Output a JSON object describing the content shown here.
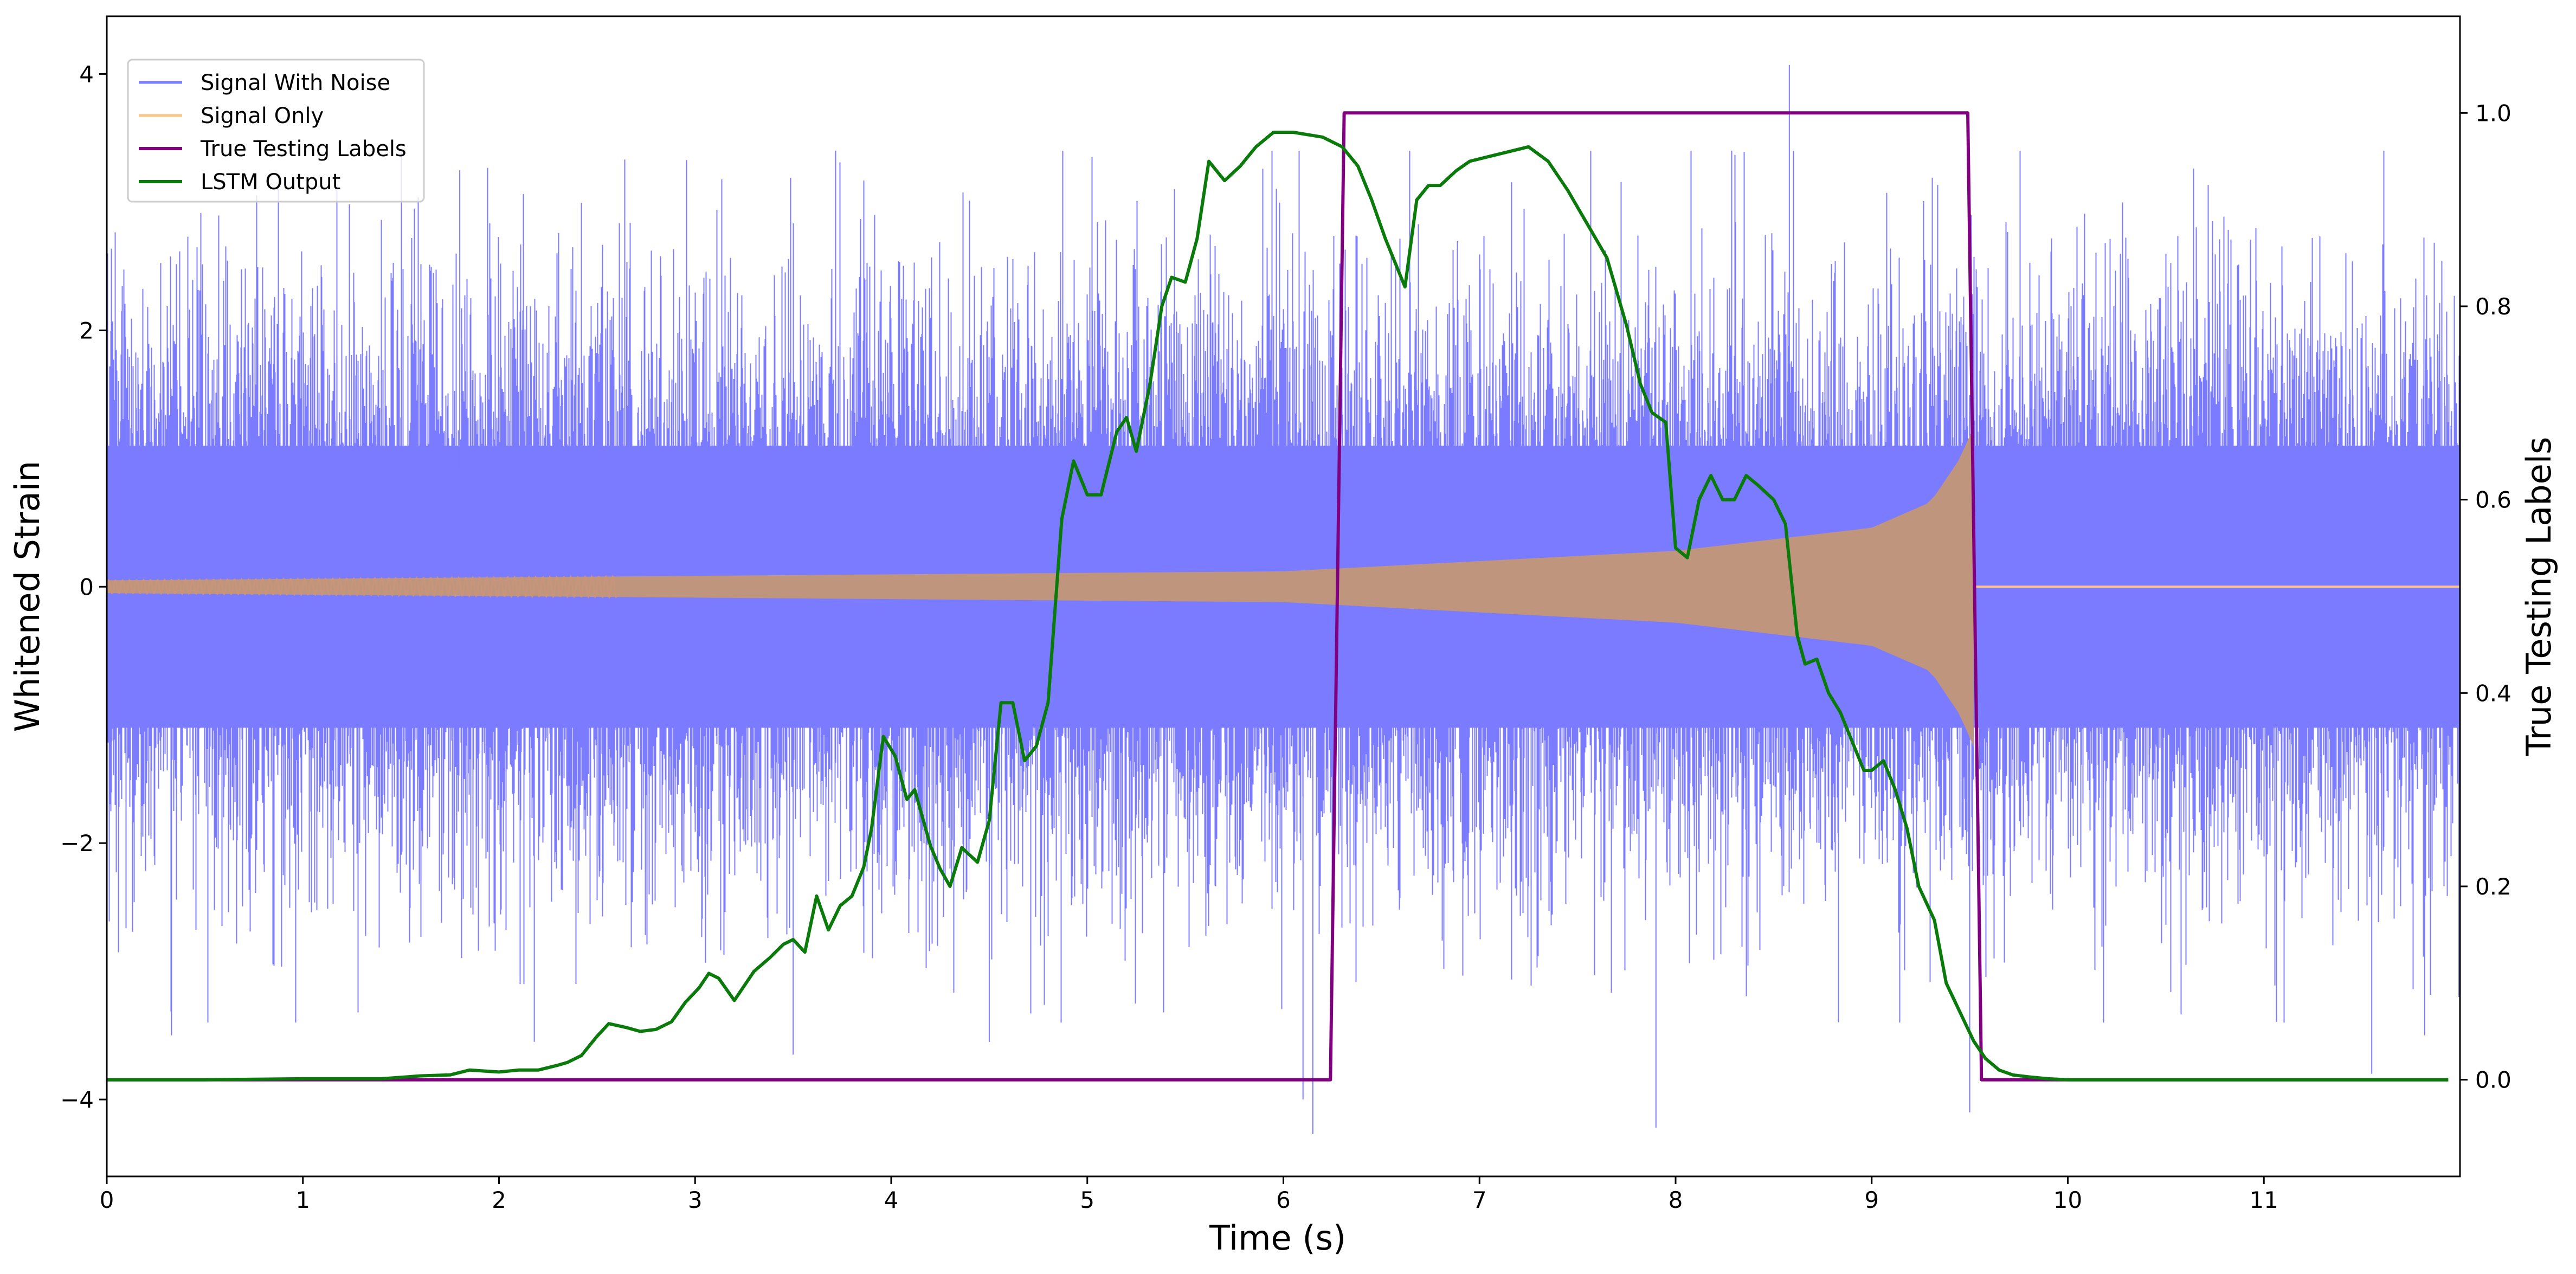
{
  "chart_data": {
    "type": "line",
    "title": "",
    "xlabel": "Time (s)",
    "ylabel": "Whitened Strain",
    "y2label": "True Testing Labels",
    "xlim": [
      0,
      12
    ],
    "ylim": [
      -4.6,
      4.45
    ],
    "y2lim": [
      -0.1,
      1.1
    ],
    "x_ticks": [
      0,
      1,
      2,
      3,
      4,
      5,
      6,
      7,
      8,
      9,
      10,
      11
    ],
    "y_ticks": [
      -4,
      -2,
      0,
      2,
      4
    ],
    "y_tick_labels": [
      "−4",
      "−2",
      "0",
      "2",
      "4"
    ],
    "y2_ticks": [
      0.0,
      0.2,
      0.4,
      0.6,
      0.8,
      1.0
    ],
    "y2_tick_labels": [
      "0.0",
      "0.2",
      "0.4",
      "0.6",
      "0.8",
      "1.0"
    ],
    "grid": false,
    "legend_position": "top-left",
    "colors": {
      "noise": "#7b7bff",
      "signal": "#ffc485",
      "labels": "#800080",
      "lstm": "#0a7a0a"
    },
    "series": [
      {
        "name": "Signal With Noise",
        "axis": "left",
        "kind": "noise_band",
        "t_start": 0,
        "t_end": 12,
        "typical_range": [
          -2.0,
          2.0
        ],
        "extremes": [
          {
            "x": 0.33,
            "y": -3.5
          },
          {
            "x": 1.8,
            "y": 3.25
          },
          {
            "x": 2.18,
            "y": -3.55
          },
          {
            "x": 3.5,
            "y": -3.65
          },
          {
            "x": 4.5,
            "y": -3.55
          },
          {
            "x": 6.1,
            "y": -4.0
          },
          {
            "x": 6.15,
            "y": -4.27
          },
          {
            "x": 7.9,
            "y": -4.22
          },
          {
            "x": 8.58,
            "y": 4.07
          },
          {
            "x": 9.5,
            "y": -4.1
          },
          {
            "x": 11.55,
            "y": -3.8
          },
          {
            "x": 11.82,
            "y": -3.5
          },
          {
            "x": 12.0,
            "y": -3.2
          }
        ]
      },
      {
        "name": "Signal Only",
        "axis": "left",
        "kind": "chirp_envelope",
        "t_start": 0,
        "t_merge": 9.52,
        "amplitude": [
          {
            "x": 0,
            "y": 0.05
          },
          {
            "x": 6,
            "y": 0.12
          },
          {
            "x": 8,
            "y": 0.28
          },
          {
            "x": 9,
            "y": 0.46
          },
          {
            "x": 9.3,
            "y": 0.66
          },
          {
            "x": 9.45,
            "y": 1.0
          },
          {
            "x": 9.52,
            "y": 1.25
          }
        ]
      },
      {
        "name": "True Testing Labels",
        "axis": "right",
        "x": [
          0,
          6.24,
          6.31,
          9.49,
          9.56,
          11.94
        ],
        "y": [
          0,
          0,
          1,
          1,
          0,
          0
        ]
      },
      {
        "name": "LSTM Output",
        "axis": "right",
        "x": [
          0,
          0.5,
          1.0,
          1.4,
          1.6,
          1.75,
          1.85,
          2.0,
          2.1,
          2.2,
          2.3,
          2.35,
          2.42,
          2.5,
          2.56,
          2.65,
          2.72,
          2.8,
          2.88,
          2.95,
          3.02,
          3.07,
          3.12,
          3.2,
          3.3,
          3.38,
          3.45,
          3.5,
          3.56,
          3.62,
          3.68,
          3.74,
          3.8,
          3.86,
          3.9,
          3.96,
          4.02,
          4.08,
          4.12,
          4.2,
          4.25,
          4.3,
          4.36,
          4.44,
          4.5,
          4.56,
          4.62,
          4.68,
          4.74,
          4.8,
          4.87,
          4.93,
          5.0,
          5.07,
          5.15,
          5.2,
          5.25,
          5.32,
          5.38,
          5.43,
          5.5,
          5.56,
          5.62,
          5.7,
          5.78,
          5.86,
          5.95,
          6.05,
          6.2,
          6.3,
          6.38,
          6.45,
          6.52,
          6.62,
          6.68,
          6.74,
          6.8,
          6.88,
          6.95,
          7.05,
          7.15,
          7.25,
          7.35,
          7.45,
          7.55,
          7.65,
          7.75,
          7.82,
          7.88,
          7.95,
          8.0,
          8.06,
          8.12,
          8.18,
          8.24,
          8.3,
          8.36,
          8.42,
          8.5,
          8.56,
          8.62,
          8.66,
          8.72,
          8.78,
          8.84,
          8.9,
          8.96,
          9.0,
          9.06,
          9.12,
          9.18,
          9.24,
          9.32,
          9.38,
          9.45,
          9.52,
          9.58,
          9.65,
          9.72,
          9.8,
          9.9,
          10.0,
          10.5,
          11.0,
          11.5,
          11.94
        ],
        "y": [
          0.0,
          0.0,
          0.001,
          0.001,
          0.004,
          0.005,
          0.01,
          0.008,
          0.01,
          0.01,
          0.015,
          0.018,
          0.025,
          0.045,
          0.058,
          0.054,
          0.05,
          0.052,
          0.06,
          0.08,
          0.095,
          0.11,
          0.105,
          0.082,
          0.112,
          0.126,
          0.14,
          0.145,
          0.132,
          0.19,
          0.155,
          0.18,
          0.19,
          0.22,
          0.26,
          0.355,
          0.335,
          0.29,
          0.3,
          0.242,
          0.218,
          0.2,
          0.24,
          0.225,
          0.268,
          0.39,
          0.39,
          0.33,
          0.345,
          0.39,
          0.58,
          0.64,
          0.605,
          0.605,
          0.67,
          0.685,
          0.65,
          0.72,
          0.8,
          0.83,
          0.825,
          0.87,
          0.95,
          0.93,
          0.945,
          0.965,
          0.98,
          0.98,
          0.975,
          0.965,
          0.945,
          0.91,
          0.87,
          0.82,
          0.91,
          0.925,
          0.925,
          0.94,
          0.95,
          0.955,
          0.96,
          0.965,
          0.95,
          0.92,
          0.885,
          0.85,
          0.78,
          0.72,
          0.69,
          0.68,
          0.55,
          0.54,
          0.6,
          0.625,
          0.6,
          0.6,
          0.625,
          0.615,
          0.6,
          0.575,
          0.46,
          0.43,
          0.435,
          0.4,
          0.38,
          0.35,
          0.32,
          0.32,
          0.33,
          0.3,
          0.26,
          0.2,
          0.165,
          0.1,
          0.07,
          0.04,
          0.022,
          0.01,
          0.005,
          0.003,
          0.001,
          0.0,
          0.0,
          0.0,
          0.0,
          0.0
        ]
      }
    ]
  }
}
